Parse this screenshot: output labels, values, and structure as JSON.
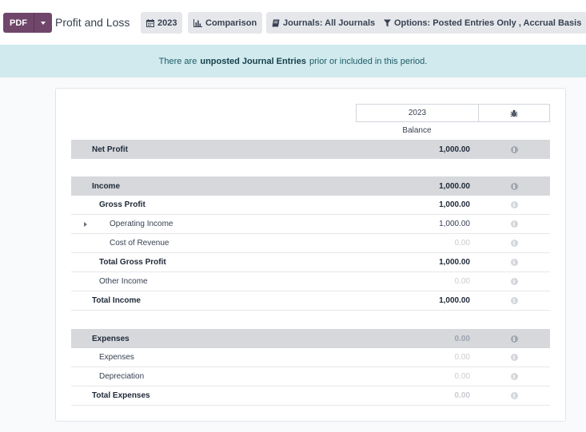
{
  "toolbar": {
    "pdf_label": "PDF",
    "title": "Profit and Loss",
    "filters": [
      {
        "label": "2023",
        "icon": "calendar-icon"
      },
      {
        "label": "Comparison",
        "icon": "bar-chart-icon"
      },
      {
        "label": "Journals: All Journals",
        "icon": "book-icon"
      },
      {
        "label": "Options: Posted Entries Only , Accrual Basis",
        "icon": "filter-icon"
      }
    ]
  },
  "alert": {
    "prefix": "There are",
    "link": "unposted Journal Entries",
    "suffix": "prior or included in this period."
  },
  "report": {
    "period_header": "2023",
    "debug_icon": "bug-icon",
    "column_label": "Balance",
    "rows": [
      {
        "label": "Net Profit",
        "amount": "1,000.00"
      },
      {
        "label": "Income",
        "amount": "1,000.00"
      },
      {
        "label": "Gross Profit",
        "amount": "1,000.00"
      },
      {
        "label": "Operating Income",
        "amount": "1,000.00"
      },
      {
        "label": "Cost of Revenue",
        "amount": "0.00"
      },
      {
        "label": "Total Gross Profit",
        "amount": "1,000.00"
      },
      {
        "label": "Other Income",
        "amount": "0.00"
      },
      {
        "label": "Total Income",
        "amount": "1,000.00"
      },
      {
        "label": "Expenses",
        "amount": "0.00"
      },
      {
        "label": "Expenses",
        "amount": "0.00"
      },
      {
        "label": "Depreciation",
        "amount": "0.00"
      },
      {
        "label": "Total Expenses",
        "amount": "0.00"
      }
    ]
  },
  "colors": {
    "primary": "#71466b",
    "alert_bg": "#d0eaee",
    "section_bg": "#d6d8dc"
  }
}
